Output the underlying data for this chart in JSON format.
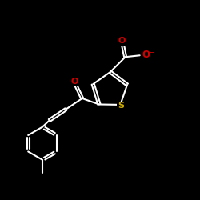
{
  "background_color": "#000000",
  "bond_color": "#ffffff",
  "s_color": "#ccaa00",
  "o_color": "#cc0000",
  "bond_width": 1.5,
  "dbo": 0.055,
  "figsize": [
    2.5,
    2.5
  ],
  "dpi": 100,
  "xlim": [
    0,
    10
  ],
  "ylim": [
    0,
    10
  ]
}
